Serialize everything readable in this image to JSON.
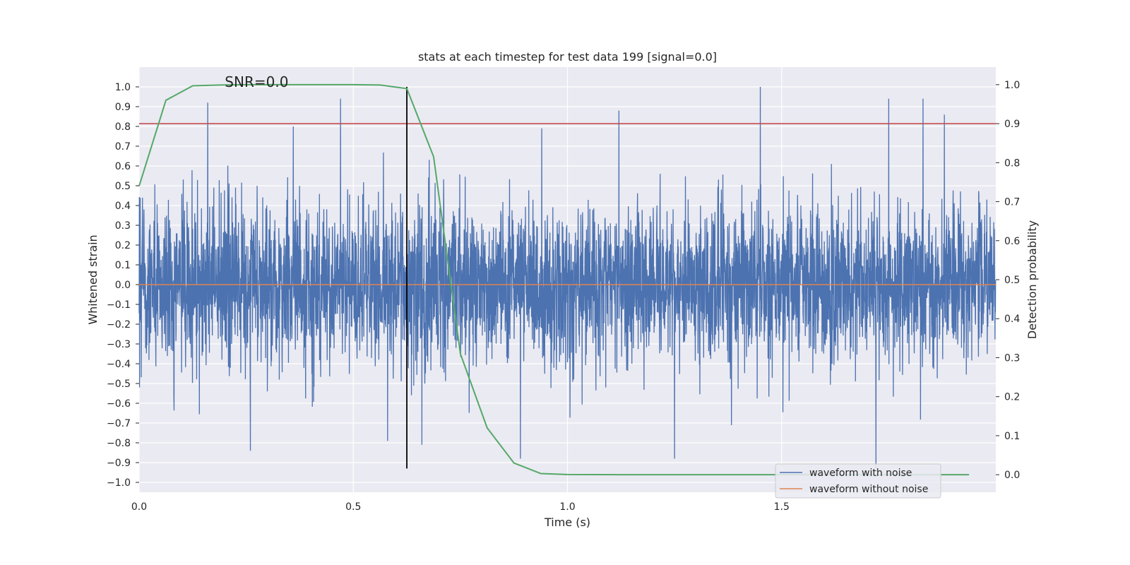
{
  "chart_data": {
    "type": "line",
    "title": "stats at each timestep for test data 199 [signal=0.0]",
    "xlabel": "Time (s)",
    "ylabel": "Whitened strain",
    "y2label": "Detection probability",
    "xlim": [
      0.0,
      2.0
    ],
    "ylim": [
      -1.05,
      1.1
    ],
    "y2lim": [
      -0.045,
      1.045
    ],
    "x_ticks": [
      0.0,
      0.5,
      1.0,
      1.5
    ],
    "x_tick_labels": [
      "0.0",
      "0.5",
      "1.0",
      "1.5"
    ],
    "y_ticks": [
      1.0,
      0.9,
      0.8,
      0.7,
      0.6,
      0.5,
      0.4,
      0.3,
      0.2,
      0.1,
      0.0,
      -0.1,
      -0.2,
      -0.3,
      -0.4,
      -0.5,
      -0.6,
      -0.7,
      -0.8,
      -0.9,
      -1.0
    ],
    "y_tick_labels": [
      "1.0",
      "0.9",
      "0.8",
      "0.7",
      "0.6",
      "0.5",
      "0.4",
      "0.3",
      "0.2",
      "0.1",
      "0.0",
      "−0.1",
      "−0.2",
      "−0.3",
      "−0.4",
      "−0.5",
      "−0.6",
      "−0.7",
      "−0.8",
      "−0.9",
      "−1.0"
    ],
    "y2_ticks": [
      1.0,
      0.9,
      0.8,
      0.7,
      0.6,
      0.5,
      0.4,
      0.3,
      0.2,
      0.1,
      0.0
    ],
    "y2_tick_labels": [
      "1.0",
      "0.9",
      "0.8",
      "0.7",
      "0.6",
      "0.5",
      "0.4",
      "0.3",
      "0.2",
      "0.1",
      "0.0"
    ],
    "annotation": "SNR=0.0",
    "annotation_x": 0.2,
    "annotation_y": 1.0,
    "series": [
      {
        "name": "waveform with noise",
        "color": "#4c72b0",
        "axis": "left",
        "note": "noise-like whitened strain, ~4096 samples over 2.0 s, amplitude mostly within ±0.6, extremes near ±1.0",
        "sample_count": 4096,
        "seed": 199,
        "scale": 0.2,
        "peaks": [
          {
            "x": 0.16,
            "y": 0.92
          },
          {
            "x": 0.47,
            "y": 0.94
          },
          {
            "x": 1.45,
            "y": 1.0
          },
          {
            "x": 1.12,
            "y": 0.88
          },
          {
            "x": 1.83,
            "y": 0.94
          },
          {
            "x": 1.75,
            "y": 0.94
          },
          {
            "x": 0.36,
            "y": 0.8
          },
          {
            "x": 0.94,
            "y": 0.79
          },
          {
            "x": 1.88,
            "y": 0.86
          },
          {
            "x": 0.26,
            "y": -0.84
          },
          {
            "x": 1.25,
            "y": -0.88
          },
          {
            "x": 1.72,
            "y": -0.93
          },
          {
            "x": 0.89,
            "y": -0.88
          },
          {
            "x": 0.66,
            "y": -0.81
          },
          {
            "x": 0.58,
            "y": -0.79
          }
        ]
      },
      {
        "name": "waveform without noise",
        "color": "#dd8452",
        "axis": "left",
        "x": [
          0.0,
          2.0
        ],
        "y": [
          0.0,
          0.0
        ]
      },
      {
        "name": "detection probability",
        "color": "#55a868",
        "axis": "right",
        "x": [
          0.0,
          0.0625,
          0.125,
          0.1875,
          0.25,
          0.3125,
          0.375,
          0.4375,
          0.5,
          0.5625,
          0.625,
          0.6875,
          0.75,
          0.8125,
          0.875,
          0.9375,
          1.0,
          1.0625,
          1.125,
          1.1875,
          1.25,
          1.3125,
          1.375,
          1.4375,
          1.5,
          1.5625,
          1.625,
          1.6875,
          1.75,
          1.8125,
          1.875,
          1.9375
        ],
        "y": [
          0.74,
          0.96,
          0.997,
          0.999,
          1.0,
          1.0,
          1.0,
          1.0,
          1.0,
          0.999,
          0.99,
          0.815,
          0.31,
          0.12,
          0.03,
          0.003,
          0.0005,
          0.0002,
          0.0001,
          0.0001,
          0.0001,
          0.0001,
          0.0001,
          0.0001,
          0.0001,
          0.0001,
          0.0001,
          0.0001,
          0.0001,
          0.0001,
          0.0001,
          0.0001
        ]
      }
    ],
    "threshold": {
      "axis": "right",
      "y": 0.9,
      "color": "#c44e52"
    },
    "vertical_marker": {
      "x": 0.625,
      "color": "#000000",
      "y_from": -0.93,
      "y_to": 1.0
    },
    "legend": {
      "position": "lower-right",
      "entries": [
        "waveform with noise",
        "waveform without noise"
      ]
    },
    "grid": true,
    "background": "#eaeaf2"
  }
}
